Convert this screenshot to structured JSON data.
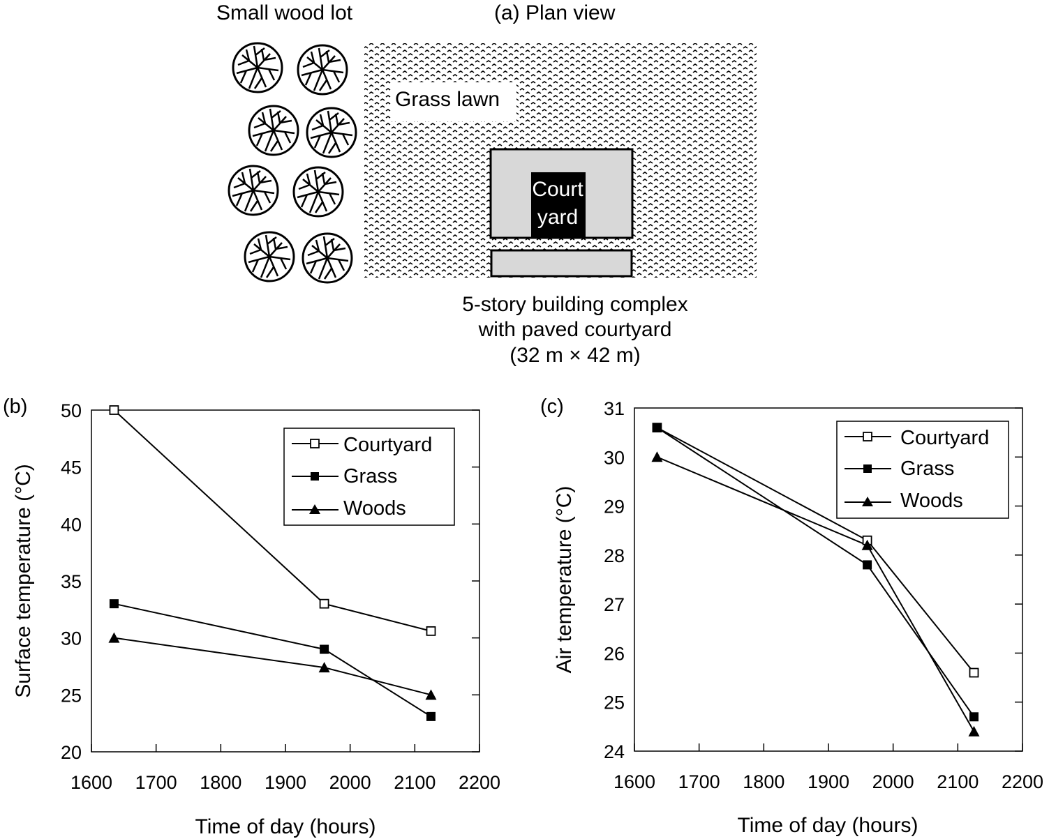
{
  "plan": {
    "title": "(a) Plan view",
    "woodlot_label": "Small wood lot",
    "lawn_label": "Grass lawn",
    "courtyard_label_line1": "Court",
    "courtyard_label_line2": "yard",
    "building_caption_line1": "5-story building complex",
    "building_caption_line2": "with paved courtyard",
    "building_caption_line3": "(32 m × 42 m)"
  },
  "chart_data": [
    {
      "type": "line",
      "panel_label": "(b)",
      "xlabel": "Time of day (hours)",
      "ylabel": "Surface temperature (°C)",
      "xlim": [
        1600,
        2200
      ],
      "ylim": [
        20,
        50
      ],
      "xticks": [
        1600,
        1700,
        1800,
        1900,
        2000,
        2100,
        2200
      ],
      "yticks": [
        20,
        25,
        30,
        35,
        40,
        45,
        50
      ],
      "legend_position": "top-right",
      "series": [
        {
          "name": "Courtyard",
          "marker": "open-square",
          "x": [
            1635,
            1960,
            2125
          ],
          "values": [
            50,
            33,
            30.6
          ]
        },
        {
          "name": "Grass",
          "marker": "filled-square",
          "x": [
            1635,
            1960,
            2125
          ],
          "values": [
            33,
            29,
            23.1
          ]
        },
        {
          "name": "Woods",
          "marker": "filled-triangle",
          "x": [
            1635,
            1960,
            2125
          ],
          "values": [
            30,
            27.4,
            25
          ]
        }
      ]
    },
    {
      "type": "line",
      "panel_label": "(c)",
      "xlabel": "Time of day (hours)",
      "ylabel": "Air temperature (°C)",
      "xlim": [
        1600,
        2200
      ],
      "ylim": [
        24,
        31
      ],
      "xticks": [
        1600,
        1700,
        1800,
        1900,
        2000,
        2100,
        2200
      ],
      "yticks": [
        24,
        25,
        26,
        27,
        28,
        29,
        30,
        31
      ],
      "legend_position": "top-right",
      "series": [
        {
          "name": "Courtyard",
          "marker": "open-square",
          "x": [
            1635,
            1960,
            2125
          ],
          "values": [
            30.6,
            28.3,
            25.6
          ]
        },
        {
          "name": "Grass",
          "marker": "filled-square",
          "x": [
            1635,
            1960,
            2125
          ],
          "values": [
            30.6,
            27.8,
            24.7
          ]
        },
        {
          "name": "Woods",
          "marker": "filled-triangle",
          "x": [
            1635,
            1960,
            2125
          ],
          "values": [
            30,
            28.2,
            24.4
          ]
        }
      ]
    }
  ]
}
